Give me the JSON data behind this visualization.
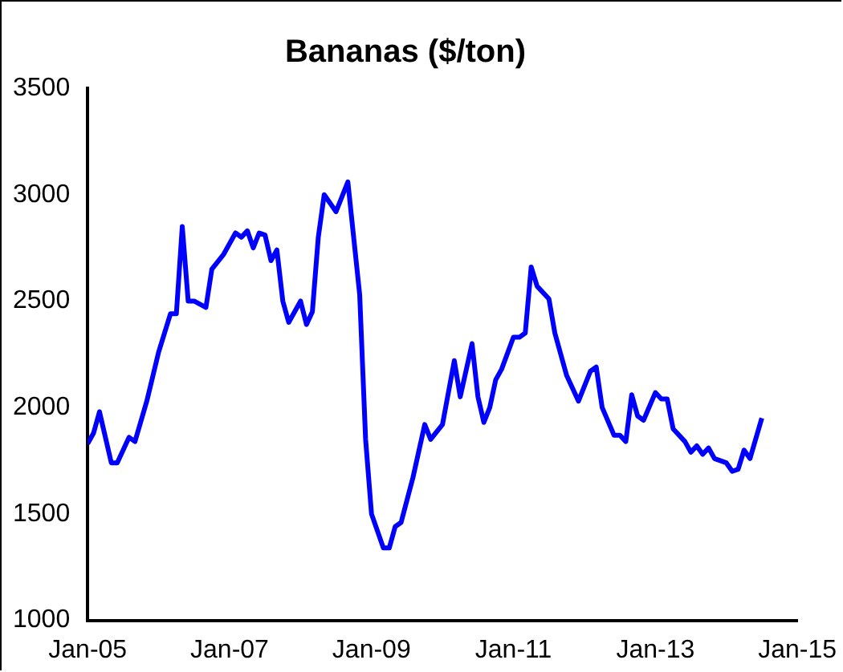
{
  "chart_data": {
    "type": "line",
    "title": "Bananas ($/ton)",
    "x": [
      "2005-01",
      "2005-02",
      "2005-03",
      "2005-05",
      "2005-06",
      "2005-08",
      "2005-09",
      "2005-11",
      "2006-01",
      "2006-03",
      "2006-04",
      "2006-05",
      "2006-06",
      "2006-07",
      "2006-09",
      "2006-10",
      "2006-12",
      "2007-02",
      "2007-03",
      "2007-04",
      "2007-05",
      "2007-06",
      "2007-07",
      "2007-08",
      "2007-09",
      "2007-10",
      "2007-11",
      "2008-01",
      "2008-02",
      "2008-03",
      "2008-04",
      "2008-05",
      "2008-07",
      "2008-09",
      "2008-11",
      "2008-12",
      "2009-01",
      "2009-03",
      "2009-04",
      "2009-05",
      "2009-06",
      "2009-08",
      "2009-10",
      "2009-11",
      "2010-01",
      "2010-03",
      "2010-04",
      "2010-06",
      "2010-07",
      "2010-08",
      "2010-09",
      "2010-10",
      "2010-11",
      "2011-01",
      "2011-02",
      "2011-03",
      "2011-04",
      "2011-05",
      "2011-07",
      "2011-08",
      "2011-10",
      "2011-12",
      "2012-02",
      "2012-03",
      "2012-04",
      "2012-06",
      "2012-07",
      "2012-08",
      "2012-09",
      "2012-10",
      "2012-11",
      "2013-01",
      "2013-02",
      "2013-03",
      "2013-04",
      "2013-06",
      "2013-07",
      "2013-08",
      "2013-09",
      "2013-10",
      "2013-11",
      "2014-01",
      "2014-02",
      "2014-03",
      "2014-04",
      "2014-05",
      "2014-07"
    ],
    "series": [
      {
        "color": "#0000ff",
        "values": [
          1830,
          1880,
          1980,
          1740,
          1740,
          1860,
          1840,
          2030,
          2260,
          2440,
          2440,
          2850,
          2500,
          2500,
          2470,
          2650,
          2720,
          2820,
          2800,
          2830,
          2750,
          2820,
          2810,
          2690,
          2740,
          2500,
          2400,
          2500,
          2390,
          2450,
          2800,
          3000,
          2920,
          3060,
          2530,
          1850,
          1500,
          1340,
          1340,
          1440,
          1460,
          1670,
          1920,
          1850,
          1920,
          2220,
          2050,
          2300,
          2050,
          1930,
          2000,
          2130,
          2180,
          2330,
          2330,
          2350,
          2660,
          2570,
          2510,
          2350,
          2150,
          2030,
          2170,
          2190,
          2000,
          1870,
          1870,
          1840,
          2060,
          1960,
          1940,
          2070,
          2040,
          2040,
          1900,
          1840,
          1790,
          1820,
          1780,
          1810,
          1760,
          1740,
          1700,
          1710,
          1800,
          1760,
          1950
        ]
      }
    ],
    "xlim": [
      "2005-01",
      "2015-01"
    ],
    "xticks": [
      {
        "value": "2005-01",
        "label": "Jan-05"
      },
      {
        "value": "2007-01",
        "label": "Jan-07"
      },
      {
        "value": "2009-01",
        "label": "Jan-09"
      },
      {
        "value": "2011-01",
        "label": "Jan-11"
      },
      {
        "value": "2013-01",
        "label": "Jan-13"
      },
      {
        "value": "2015-01",
        "label": "Jan-15"
      }
    ],
    "ylim": [
      1000,
      3500
    ],
    "yticks": [
      1000,
      1500,
      2000,
      2500,
      3000,
      3500
    ],
    "grid": false,
    "legend": false,
    "marker": "none",
    "line_style": "solid"
  }
}
